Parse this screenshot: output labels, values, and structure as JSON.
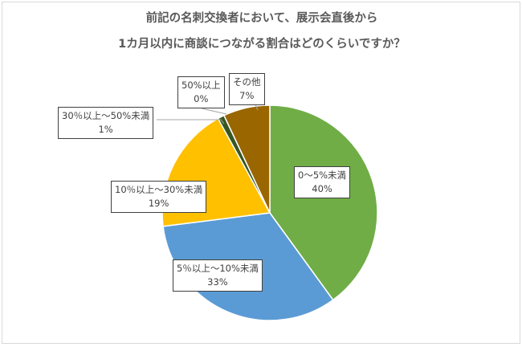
{
  "chart_data": {
    "type": "pie",
    "title_lines": [
      "前記の名刺交換者において、展示会直後から",
      "1カ月以内に商談につながる割合はどのくらいですか？"
    ],
    "categories": [
      "0～5%未満",
      "5％以上～10%未満",
      "10％以上～30%未満",
      "30％以上～50%未満",
      "50%以上",
      "その他"
    ],
    "values": [
      40,
      33,
      19,
      1,
      0,
      7
    ],
    "value_labels": [
      "40%",
      "33%",
      "19%",
      "1%",
      "0%",
      "7%"
    ],
    "colors": [
      "#70ad47",
      "#5b9bd5",
      "#ffc000",
      "#375623",
      "#4472c4",
      "#996600"
    ],
    "start_angle_deg": 0,
    "direction": "clockwise",
    "legend": "none"
  }
}
